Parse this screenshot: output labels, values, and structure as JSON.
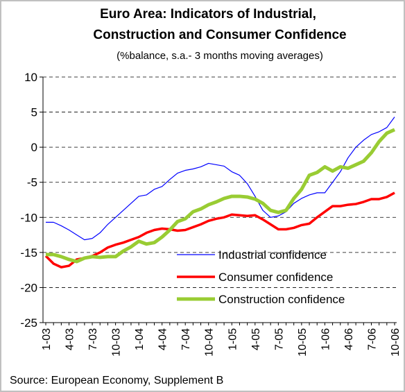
{
  "chart_data": {
    "type": "line",
    "title": "Euro Area: Indicators of Industrial,",
    "title_line2": "Construction and Consumer Confidence",
    "subtitle": "(%balance, s.a.- 3 months moving averages)",
    "source": "Source: European Economy, Supplement B",
    "categories": [
      "1-03",
      null,
      null,
      "4-03",
      null,
      null,
      "7-03",
      null,
      null,
      "10-03",
      null,
      null,
      "1-04",
      null,
      null,
      "4-04",
      null,
      null,
      "7-04",
      null,
      null,
      "10-04",
      null,
      null,
      "1-05",
      null,
      null,
      "4-05",
      null,
      null,
      "7-05",
      null,
      null,
      "10-05",
      null,
      null,
      "1-06",
      null,
      null,
      "4-06",
      null,
      null,
      "7-06",
      null,
      null,
      "10-06"
    ],
    "ylim": [
      -25,
      10
    ],
    "yticks": [
      -25,
      -20,
      -15,
      -10,
      -5,
      0,
      5,
      10
    ],
    "grid": true,
    "series": [
      {
        "name": "Industrial confidence",
        "color": "#0000ff",
        "values": [
          -10.7,
          -10.7,
          -11.2,
          -11.8,
          -12.5,
          -13.2,
          -13.0,
          -12.2,
          -11.0,
          -10.0,
          -9.0,
          -8.0,
          -7.0,
          -6.8,
          -6.0,
          -5.6,
          -4.6,
          -3.7,
          -3.3,
          -3.1,
          -2.8,
          -2.3,
          -2.5,
          -2.7,
          -3.5,
          -4.0,
          -5.2,
          -7.0,
          -9.0,
          -10.0,
          -9.8,
          -9.2,
          -8.0,
          -7.3,
          -6.8,
          -6.5,
          -6.5,
          -5.0,
          -3.5,
          -1.5,
          0.0,
          1.0,
          1.8,
          2.2,
          2.8,
          4.3
        ]
      },
      {
        "name": "Consumer confidence",
        "color": "#ff0000",
        "values": [
          -15.5,
          -16.6,
          -17.1,
          -16.9,
          -16.0,
          -15.8,
          -15.5,
          -15.0,
          -14.3,
          -13.9,
          -13.6,
          -13.2,
          -12.8,
          -12.2,
          -11.8,
          -11.6,
          -11.7,
          -11.9,
          -11.8,
          -11.4,
          -11.0,
          -10.5,
          -10.2,
          -10.0,
          -9.6,
          -9.7,
          -9.8,
          -9.7,
          -10.3,
          -11.0,
          -11.7,
          -11.7,
          -11.5,
          -11.1,
          -10.9,
          -10.0,
          -9.2,
          -8.4,
          -8.4,
          -8.2,
          -8.1,
          -7.8,
          -7.4,
          -7.4,
          -7.1,
          -6.5
        ]
      },
      {
        "name": "Construction confidence",
        "color": "#99cc33",
        "values": [
          -15.3,
          -15.3,
          -15.6,
          -16.0,
          -16.3,
          -15.8,
          -15.6,
          -15.7,
          -15.6,
          -15.6,
          -14.8,
          -14.2,
          -13.4,
          -13.8,
          -13.6,
          -12.8,
          -11.8,
          -10.6,
          -10.2,
          -9.2,
          -8.8,
          -8.2,
          -7.8,
          -7.3,
          -7.0,
          -7.0,
          -7.1,
          -7.4,
          -8.0,
          -9.0,
          -9.3,
          -9.0,
          -7.3,
          -6.0,
          -4.0,
          -3.6,
          -2.8,
          -3.4,
          -2.8,
          -3.0,
          -2.5,
          -2.0,
          -0.8,
          0.8,
          2.0,
          2.5
        ]
      }
    ]
  }
}
